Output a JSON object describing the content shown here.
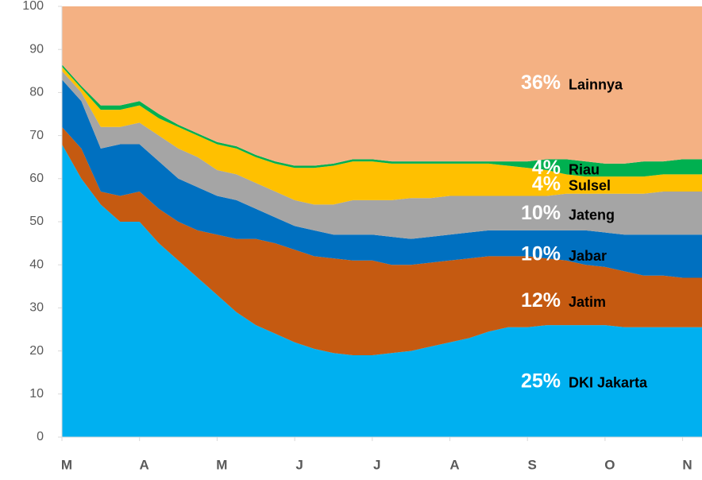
{
  "chart_data": {
    "type": "stacked_area",
    "categories": [
      "M",
      null,
      null,
      null,
      "A",
      null,
      null,
      null,
      "M",
      null,
      null,
      null,
      "J",
      null,
      null,
      null,
      "J",
      null,
      null,
      null,
      "A",
      null,
      null,
      null,
      "S",
      null,
      null,
      null,
      "O",
      null,
      null,
      null,
      "N",
      null
    ],
    "ylim": [
      0,
      100
    ],
    "yticks": [
      0,
      10,
      20,
      30,
      40,
      50,
      60,
      70,
      80,
      90,
      100
    ],
    "grid": false,
    "series": [
      {
        "name": "DKI Jakarta",
        "share": "25%",
        "color": "#00b0f0",
        "values": [
          68,
          60,
          54,
          50,
          50,
          45,
          41,
          37,
          33,
          29,
          26,
          24,
          22,
          20.5,
          19.5,
          19,
          19,
          19.5,
          20,
          21,
          22,
          23,
          24.5,
          25.5,
          25.5,
          26,
          26,
          26,
          26,
          25.5,
          25.5,
          25.5,
          25.5,
          25.5
        ]
      },
      {
        "name": "Jatim",
        "share": "12%",
        "color": "#c55a11",
        "values": [
          4,
          7,
          3,
          6,
          7,
          8,
          9,
          11,
          14,
          17,
          20,
          21,
          21.5,
          21.5,
          22,
          22,
          22,
          20.5,
          20,
          19.5,
          19,
          18.5,
          17.5,
          16.5,
          16.5,
          15.5,
          15,
          14,
          13.5,
          13,
          12,
          12,
          11.5,
          11.5
        ]
      },
      {
        "name": "Jabar",
        "share": "10%",
        "color": "#0070c0",
        "values": [
          11,
          11,
          10,
          12,
          11,
          11,
          10,
          10,
          9,
          9,
          7,
          6,
          5.5,
          6,
          5.5,
          6,
          6,
          6.5,
          6,
          6,
          6,
          6,
          6,
          6,
          6,
          6.5,
          7,
          8,
          8,
          8.5,
          9.5,
          9.5,
          10,
          10
        ]
      },
      {
        "name": "Jateng",
        "share": "10%",
        "color": "#a5a5a5",
        "values": [
          2,
          2,
          5,
          4,
          5,
          6,
          7,
          7,
          6,
          6,
          6,
          6,
          6,
          6,
          7,
          8,
          8,
          8.5,
          9.5,
          9,
          9,
          8.5,
          8,
          8,
          8,
          8,
          8.5,
          8.5,
          9,
          9.5,
          9.5,
          10,
          10,
          10
        ]
      },
      {
        "name": "Sulsel",
        "share": "4%",
        "color": "#ffc000",
        "values": [
          1,
          1,
          4,
          4,
          4,
          4,
          5,
          5,
          6,
          6,
          6,
          6.5,
          7.5,
          8.5,
          9,
          9,
          9,
          8.5,
          8,
          8,
          7.5,
          7.5,
          7.5,
          7,
          6.5,
          6,
          4.5,
          4,
          4,
          4,
          4,
          4,
          4,
          4
        ]
      },
      {
        "name": "Riau",
        "share": "4%",
        "color": "#00b050",
        "values": [
          0.5,
          0.5,
          1,
          1,
          1,
          1,
          0.5,
          0.5,
          0.5,
          0.5,
          0.5,
          0.5,
          0.5,
          0.5,
          0.5,
          0.5,
          0.5,
          0.5,
          0.5,
          0.5,
          0.5,
          0.5,
          0.5,
          1,
          1.5,
          2.5,
          3.5,
          3.5,
          3,
          3,
          3.5,
          3,
          3.5,
          3.5
        ]
      },
      {
        "name": "Lainnya",
        "share": "36%",
        "color": "#f4b183",
        "values": [
          13.5,
          18.5,
          23,
          23,
          22,
          25,
          27.5,
          29.5,
          31.5,
          32.5,
          34.5,
          36,
          37,
          37,
          36.5,
          35.5,
          35.5,
          36,
          36,
          36,
          36,
          36,
          36,
          36,
          36,
          35.5,
          35.5,
          36,
          36.5,
          36.5,
          36,
          36,
          35.5,
          35.5
        ]
      }
    ]
  }
}
